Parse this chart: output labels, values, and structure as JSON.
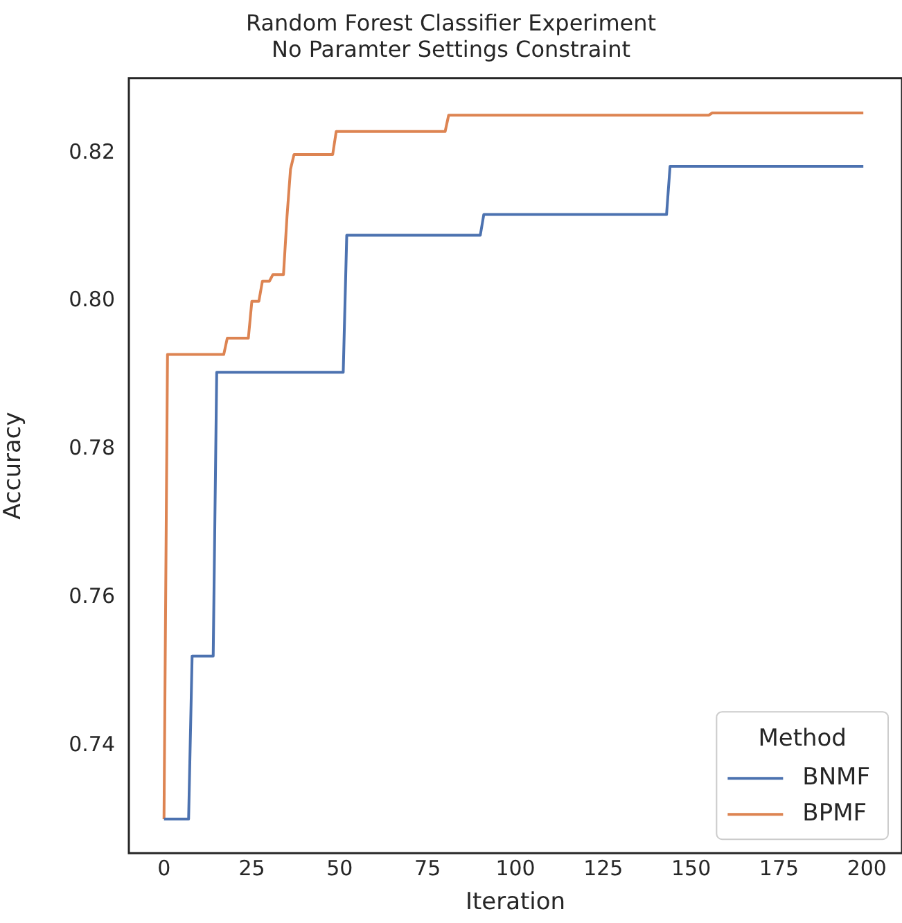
{
  "chart_data": {
    "type": "line",
    "title": "Random Forest Classifier Experiment\nNo Paramter Settings Constraint",
    "xlabel": "Iteration",
    "ylabel": "Accuracy",
    "legend_title": "Method",
    "legend": "bottom right",
    "grid": false,
    "marker": "none",
    "line_style": "solid",
    "xlim": [
      -10,
      210
    ],
    "xticks": [
      0,
      25,
      50,
      75,
      100,
      125,
      150,
      175,
      200
    ],
    "ylim": [
      0.7255,
      0.8301
    ],
    "yticks": [
      0.74,
      0.76,
      0.78,
      {
        "value": 0.8,
        "label": "0.80"
      },
      0.82
    ],
    "series": [
      {
        "name": "BNMF",
        "color": "#4c72b0",
        "x": [
          0,
          7,
          8,
          14,
          15,
          51,
          52,
          90,
          91,
          143,
          144,
          199
        ],
        "values": [
          0.7301,
          0.7301,
          0.7521,
          0.7521,
          0.7904,
          0.7904,
          0.8089,
          0.8089,
          0.8117,
          0.8117,
          0.8182,
          0.8182
        ]
      },
      {
        "name": "BPMF",
        "color": "#dd8452",
        "x": [
          0,
          1,
          17,
          18,
          24,
          25,
          27,
          28,
          30,
          31,
          34,
          35,
          36,
          37,
          48,
          49,
          80,
          81,
          155,
          156,
          199
        ],
        "values": [
          0.7301,
          0.7928,
          0.7928,
          0.795,
          0.795,
          0.8,
          0.8,
          0.8027,
          0.8027,
          0.8036,
          0.8036,
          0.8114,
          0.8178,
          0.8198,
          0.8198,
          0.8229,
          0.8229,
          0.8251,
          0.8251,
          0.8254,
          0.8254
        ]
      }
    ]
  }
}
